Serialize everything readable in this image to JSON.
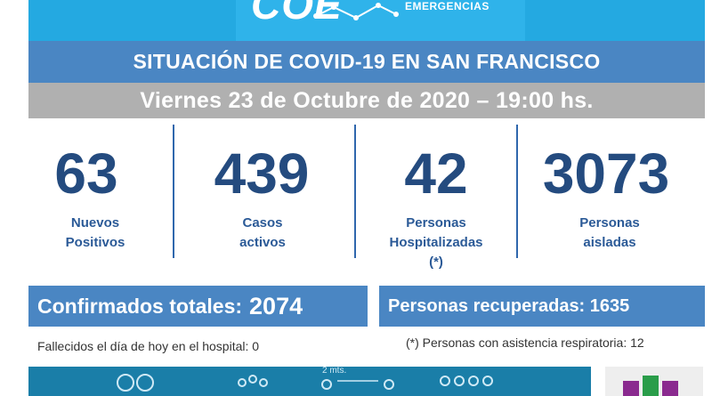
{
  "header": {
    "logo_text": "COE",
    "logo_subtitle": "EMERGENCIAS",
    "title": "SITUACIÓN DE COVID-19 EN SAN FRANCISCO",
    "date": "Viernes 23 de Octubre de 2020 – 19:00 hs."
  },
  "stats": [
    {
      "value": "63",
      "label_line1": "Nuevos",
      "label_line2": "Positivos",
      "label_line3": ""
    },
    {
      "value": "439",
      "label_line1": "Casos",
      "label_line2": "activos",
      "label_line3": ""
    },
    {
      "value": "42",
      "label_line1": "Personas",
      "label_line2": "Hospitalizadas",
      "label_line3": "(*)"
    },
    {
      "value": "3073",
      "label_line1": "Personas",
      "label_line2": "aisladas",
      "label_line3": ""
    }
  ],
  "totals": {
    "confirmed_label": "Confirmados totales:",
    "confirmed_value": "2074",
    "recovered_text": "Personas recuperadas: 1635"
  },
  "notes": {
    "deaths": "Fallecidos el día de hoy en el hospital: 0",
    "respiratory": "(*) Personas con asistencia respiratoria: 12"
  },
  "footer": {
    "distance_label": "2 mts."
  },
  "colors": {
    "banner": "#24a9e1",
    "title_band": "#4a86c3",
    "date_band": "#b0b0b0",
    "numbers": "#244b7f",
    "labels": "#2b5a97"
  }
}
